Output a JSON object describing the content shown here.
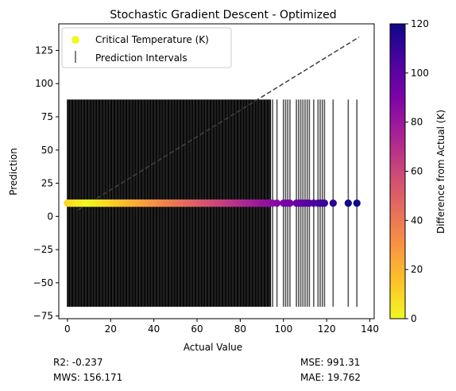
{
  "chart_data": {
    "type": "scatter",
    "title": "Stochastic Gradient Descent - Optimized",
    "xlabel": "Actual Value",
    "ylabel": "Prediction",
    "xlim": [
      -4,
      142
    ],
    "ylim": [
      -77,
      145
    ],
    "xticks": [
      0,
      20,
      40,
      60,
      80,
      100,
      120,
      140
    ],
    "yticks": [
      -75,
      -50,
      -25,
      0,
      25,
      50,
      75,
      100,
      125
    ],
    "grid": false,
    "legend_position": "top-left",
    "series": [
      {
        "name": "Critical Temperature (K)",
        "marker": "circle",
        "prediction_constant": 10.0,
        "actual_values_dense_range": [
          0,
          94
        ],
        "actual_values_sparse": [
          95,
          97,
          100,
          101,
          102,
          103,
          106,
          107,
          108,
          109,
          110,
          111,
          112,
          114,
          116,
          117,
          118,
          119,
          123,
          130,
          134
        ],
        "color_encodes": "Difference from Actual (K)"
      },
      {
        "name": "Prediction Intervals",
        "marker": "vertical-line",
        "color": "#000000",
        "lower": -68,
        "upper": 88
      }
    ],
    "reference_line": {
      "style": "dashed",
      "color": "#404040",
      "from": [
        5,
        5
      ],
      "to": [
        135,
        135
      ]
    },
    "colorbar": {
      "label": "Difference from Actual (K)",
      "colormap": "plasma_r",
      "range": [
        0,
        120
      ],
      "ticks": [
        0,
        20,
        40,
        60,
        80,
        100,
        120
      ],
      "colors": [
        "#f0f921",
        "#fdc328",
        "#f89441",
        "#e56b5d",
        "#cb4778",
        "#a82296",
        "#7e03a8",
        "#4b03a1",
        "#0d0887"
      ]
    },
    "metrics": {
      "r2": "R2: -0.237",
      "mws": "MWS: 156.171",
      "mse": "MSE: 991.31",
      "mae": "MAE: 19.762"
    }
  }
}
